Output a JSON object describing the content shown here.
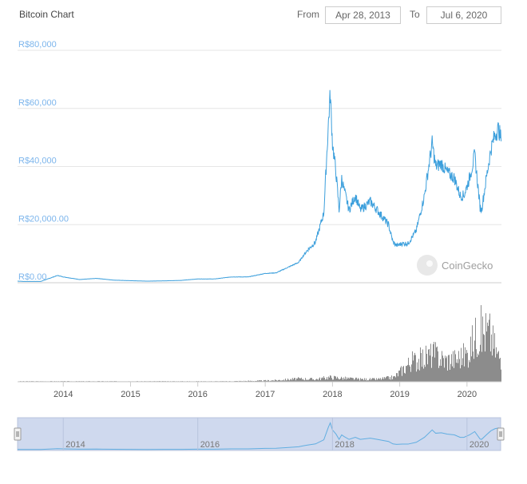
{
  "title": "Bitcoin Chart",
  "range": {
    "from_label": "From",
    "from_value": "Apr 28, 2013",
    "to_label": "To",
    "to_value": "Jul 6, 2020"
  },
  "watermark": "CoinGecko",
  "colors": {
    "price_line": "#3c9fdc",
    "axis_label": "#7cb5ec",
    "volume": "#6f6f6f",
    "grid": "#e6e6e6",
    "navigator_fill": "#cfd9ee"
  },
  "chart_data": {
    "type": "line",
    "title": "Bitcoin Chart",
    "series": [
      {
        "type": "line",
        "x": [
          "2013-04-28",
          "2013-06-01",
          "2013-09-01",
          "2013-12-01",
          "2014-01-01",
          "2014-04-01",
          "2014-07-01",
          "2014-10-01",
          "2015-01-01",
          "2015-04-01",
          "2015-07-01",
          "2015-10-01",
          "2016-01-01",
          "2016-04-01",
          "2016-07-01",
          "2016-10-01",
          "2017-01-01",
          "2017-03-01",
          "2017-05-01",
          "2017-07-01",
          "2017-08-15",
          "2017-10-01",
          "2017-11-15",
          "2017-12-10",
          "2017-12-20",
          "2018-01-01",
          "2018-01-20",
          "2018-02-06",
          "2018-02-20",
          "2018-03-05",
          "2018-04-01",
          "2018-05-05",
          "2018-06-01",
          "2018-07-25",
          "2018-09-01",
          "2018-11-01",
          "2018-11-25",
          "2018-12-15",
          "2019-01-15",
          "2019-02-15",
          "2019-04-01",
          "2019-05-15",
          "2019-06-26",
          "2019-07-15",
          "2019-08-15",
          "2019-09-15",
          "2019-10-25",
          "2019-11-25",
          "2019-12-15",
          "2020-01-15",
          "2020-02-12",
          "2020-03-12",
          "2020-03-20",
          "2020-04-15",
          "2020-05-10",
          "2020-06-01",
          "2020-06-20",
          "2020-07-06"
        ],
        "y": [
          550,
          450,
          450,
          2500,
          2000,
          1100,
          1500,
          900,
          700,
          550,
          650,
          800,
          1300,
          1300,
          2000,
          2000,
          3200,
          3400,
          5200,
          7000,
          11000,
          14000,
          24000,
          55000,
          65000,
          48000,
          38000,
          25000,
          36000,
          32000,
          25000,
          30000,
          25000,
          28000,
          25000,
          20000,
          14000,
          12800,
          13500,
          13500,
          18000,
          30000,
          48000,
          40000,
          41000,
          38000,
          36000,
          30000,
          30000,
          36000,
          44000,
          26000,
          25000,
          36000,
          46000,
          51000,
          53000,
          49000
        ]
      },
      {
        "type": "bar",
        "name": "volume",
        "x": [
          "2013-06-01",
          "2014-06-01",
          "2015-06-01",
          "2016-06-01",
          "2016-12-01",
          "2017-03-01",
          "2017-07-01",
          "2017-10-01",
          "2017-12-15",
          "2018-03-01",
          "2018-06-01",
          "2018-09-01",
          "2018-12-01",
          "2019-03-01",
          "2019-05-01",
          "2019-07-01",
          "2019-09-01",
          "2019-11-01",
          "2020-01-01",
          "2020-03-01",
          "2020-05-01",
          "2020-06-15"
        ],
        "y": [
          1,
          1,
          1,
          1,
          2,
          3,
          6,
          5,
          9,
          7,
          5,
          5,
          9,
          40,
          45,
          55,
          42,
          45,
          55,
          100,
          95,
          50
        ]
      }
    ],
    "yticks": [
      "R$0.00",
      "R$20,000.00",
      "R$40,000",
      "R$60,000",
      "R$80,000"
    ],
    "ylim": [
      0,
      80000
    ],
    "xticks": [
      "2014",
      "2015",
      "2016",
      "2017",
      "2018",
      "2019",
      "2020"
    ],
    "navigator_ticks": [
      "2014",
      "2016",
      "2018",
      "2020"
    ],
    "grid": true
  }
}
